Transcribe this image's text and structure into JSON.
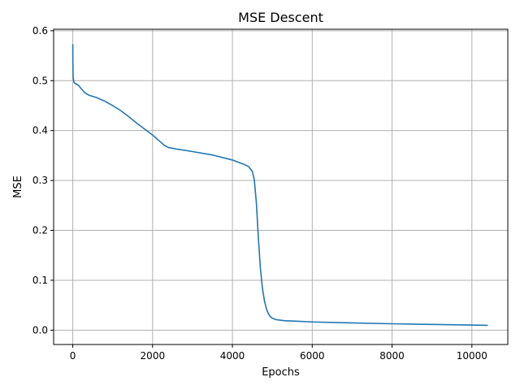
{
  "chart_data": {
    "type": "line",
    "title": "MSE Descent",
    "xlabel": "Epochs",
    "ylabel": "MSE",
    "xlim": [
      -480,
      10900
    ],
    "ylim": [
      -0.0287,
      0.603
    ],
    "x_ticks": [
      0,
      2000,
      4000,
      6000,
      8000,
      10000
    ],
    "y_ticks": [
      0.0,
      0.1,
      0.2,
      0.3,
      0.4,
      0.5,
      0.6
    ],
    "x_tick_labels": [
      "0",
      "2000",
      "4000",
      "6000",
      "8000",
      "10000"
    ],
    "y_tick_labels": [
      "0.0",
      "0.1",
      "0.2",
      "0.3",
      "0.4",
      "0.5",
      "0.6"
    ],
    "grid": true,
    "line_color": "#1f77b4",
    "grid_color": "#b0b0b0",
    "series": [
      {
        "name": "",
        "x": [
          0,
          1,
          5,
          10,
          30,
          60,
          100,
          150,
          200,
          300,
          400,
          600,
          800,
          1000,
          1200,
          1400,
          1600,
          1800,
          2000,
          2100,
          2200,
          2300,
          2400,
          2600,
          3000,
          3500,
          4000,
          4300,
          4400,
          4500,
          4550,
          4600,
          4650,
          4700,
          4750,
          4800,
          4850,
          4900,
          4950,
          5000,
          5100,
          5300,
          5600,
          6000,
          7000,
          8000,
          9000,
          10000,
          10400
        ],
        "y": [
          0.573,
          0.55,
          0.52,
          0.505,
          0.497,
          0.494,
          0.493,
          0.49,
          0.485,
          0.476,
          0.471,
          0.466,
          0.459,
          0.45,
          0.44,
          0.428,
          0.415,
          0.403,
          0.391,
          0.384,
          0.377,
          0.37,
          0.366,
          0.363,
          0.358,
          0.351,
          0.341,
          0.332,
          0.328,
          0.318,
          0.3,
          0.255,
          0.185,
          0.125,
          0.085,
          0.06,
          0.043,
          0.033,
          0.027,
          0.024,
          0.021,
          0.019,
          0.018,
          0.0165,
          0.0145,
          0.0128,
          0.0115,
          0.0102,
          0.0097
        ]
      }
    ]
  }
}
